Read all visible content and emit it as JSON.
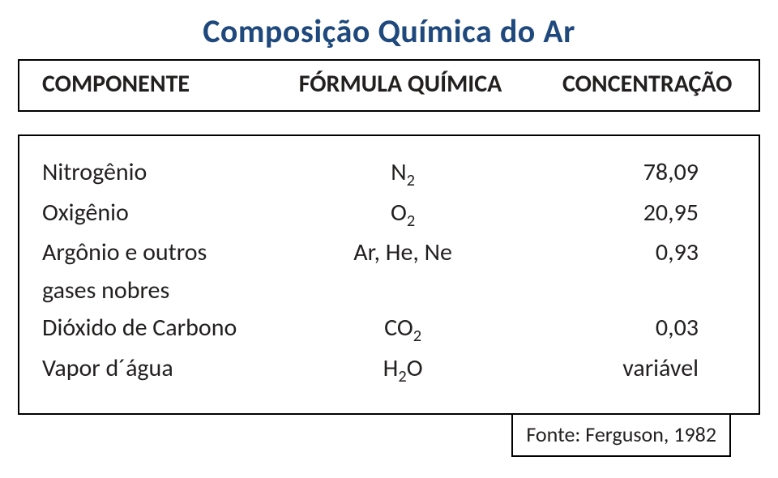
{
  "title": "Composição Química do Ar",
  "title_color": "#1f497d",
  "title_fontsize": 40,
  "body_fontsize": 30,
  "text_color": "#221f1f",
  "background_color": "#ffffff",
  "border_color": "#000000",
  "header": {
    "col1": "COMPONENTE",
    "col2": "FÓRMULA QUÍMICA",
    "col3": "CONCENTRAÇÃO"
  },
  "rows": [
    {
      "component": "Nitrogênio",
      "formula_base": "N",
      "formula_sub": "2",
      "conc": "78,09"
    },
    {
      "component": "Oxigênio",
      "formula_base": "O",
      "formula_sub": "2",
      "conc": "20,95"
    },
    {
      "component": "Argônio e outros",
      "formula_plain": "Ar, He, Ne",
      "conc": "0,93"
    },
    {
      "component": "gases nobres",
      "formula_plain": "",
      "conc": ""
    },
    {
      "component": "Dióxido de Carbono",
      "formula_base": "CO",
      "formula_sub": "2",
      "conc": "0,03"
    },
    {
      "component": "Vapor d´água",
      "formula_base": "H",
      "formula_sub": "2",
      "formula_tail": "O",
      "conc": "variável"
    }
  ],
  "source": "Fonte: Ferguson, 1982"
}
